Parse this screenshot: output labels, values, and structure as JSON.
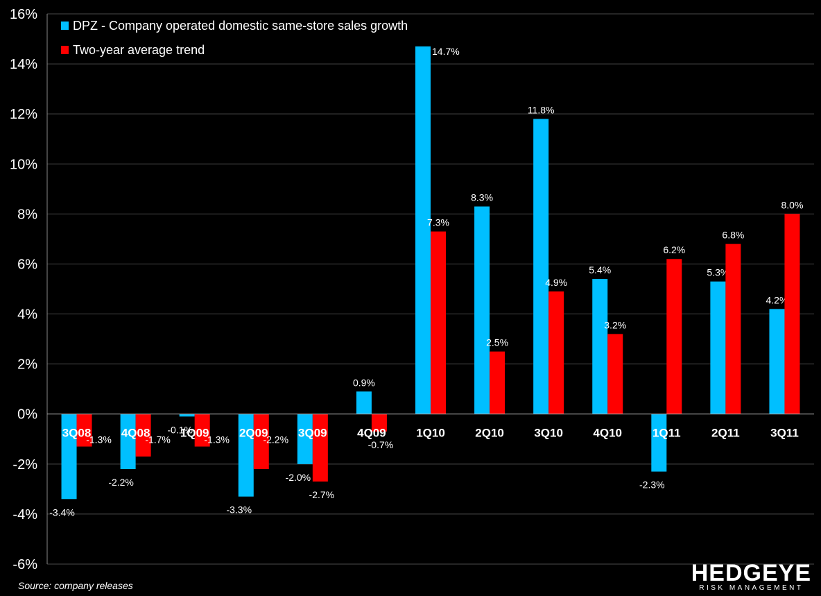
{
  "chart_data": {
    "type": "bar",
    "categories": [
      "3Q08",
      "4Q08",
      "1Q09",
      "2Q09",
      "3Q09",
      "4Q09",
      "1Q10",
      "2Q10",
      "3Q10",
      "4Q10",
      "1Q11",
      "2Q11",
      "3Q11"
    ],
    "series": [
      {
        "name": "DPZ - Company operated domestic same-store sales growth",
        "color": "#00BFFF",
        "values": [
          -3.4,
          -2.2,
          -0.1,
          -3.3,
          -2.0,
          0.9,
          14.7,
          8.3,
          11.8,
          5.4,
          -2.3,
          5.3,
          4.2
        ],
        "labels": [
          "-3.4%",
          "-2.2%",
          "-0.1%",
          "-3.3%",
          "-2.0%",
          "0.9%",
          "14.7%",
          "8.3%",
          "11.8%",
          "5.4%",
          "-2.3%",
          "5.3%",
          "4.2%"
        ]
      },
      {
        "name": "Two-year average trend",
        "color": "#FF0000",
        "values": [
          -1.3,
          -1.7,
          -1.3,
          -2.2,
          -2.7,
          -0.7,
          7.3,
          2.5,
          4.9,
          3.2,
          6.2,
          6.8,
          8.0
        ],
        "labels": [
          "-1.3%",
          "-1.7%",
          "-1.3%",
          "-2.2%",
          "-2.7%",
          "-0.7%",
          "7.3%",
          "2.5%",
          "4.9%",
          "3.2%",
          "6.2%",
          "6.8%",
          "8.0%"
        ]
      }
    ],
    "ylim": [
      -6,
      16
    ],
    "yticks": [
      -6,
      -4,
      -2,
      0,
      2,
      4,
      6,
      8,
      10,
      12,
      14,
      16
    ],
    "ytick_labels": [
      "-6%",
      "-4%",
      "-2%",
      "0%",
      "2%",
      "4%",
      "6%",
      "8%",
      "10%",
      "12%",
      "14%",
      "16%"
    ],
    "grid": true,
    "legend_position": "top-left",
    "title": "",
    "xlabel": "",
    "ylabel": ""
  },
  "source": "Source: company releases",
  "logo": {
    "main": "HEDGEYE",
    "sub": "RISK MANAGEMENT"
  }
}
